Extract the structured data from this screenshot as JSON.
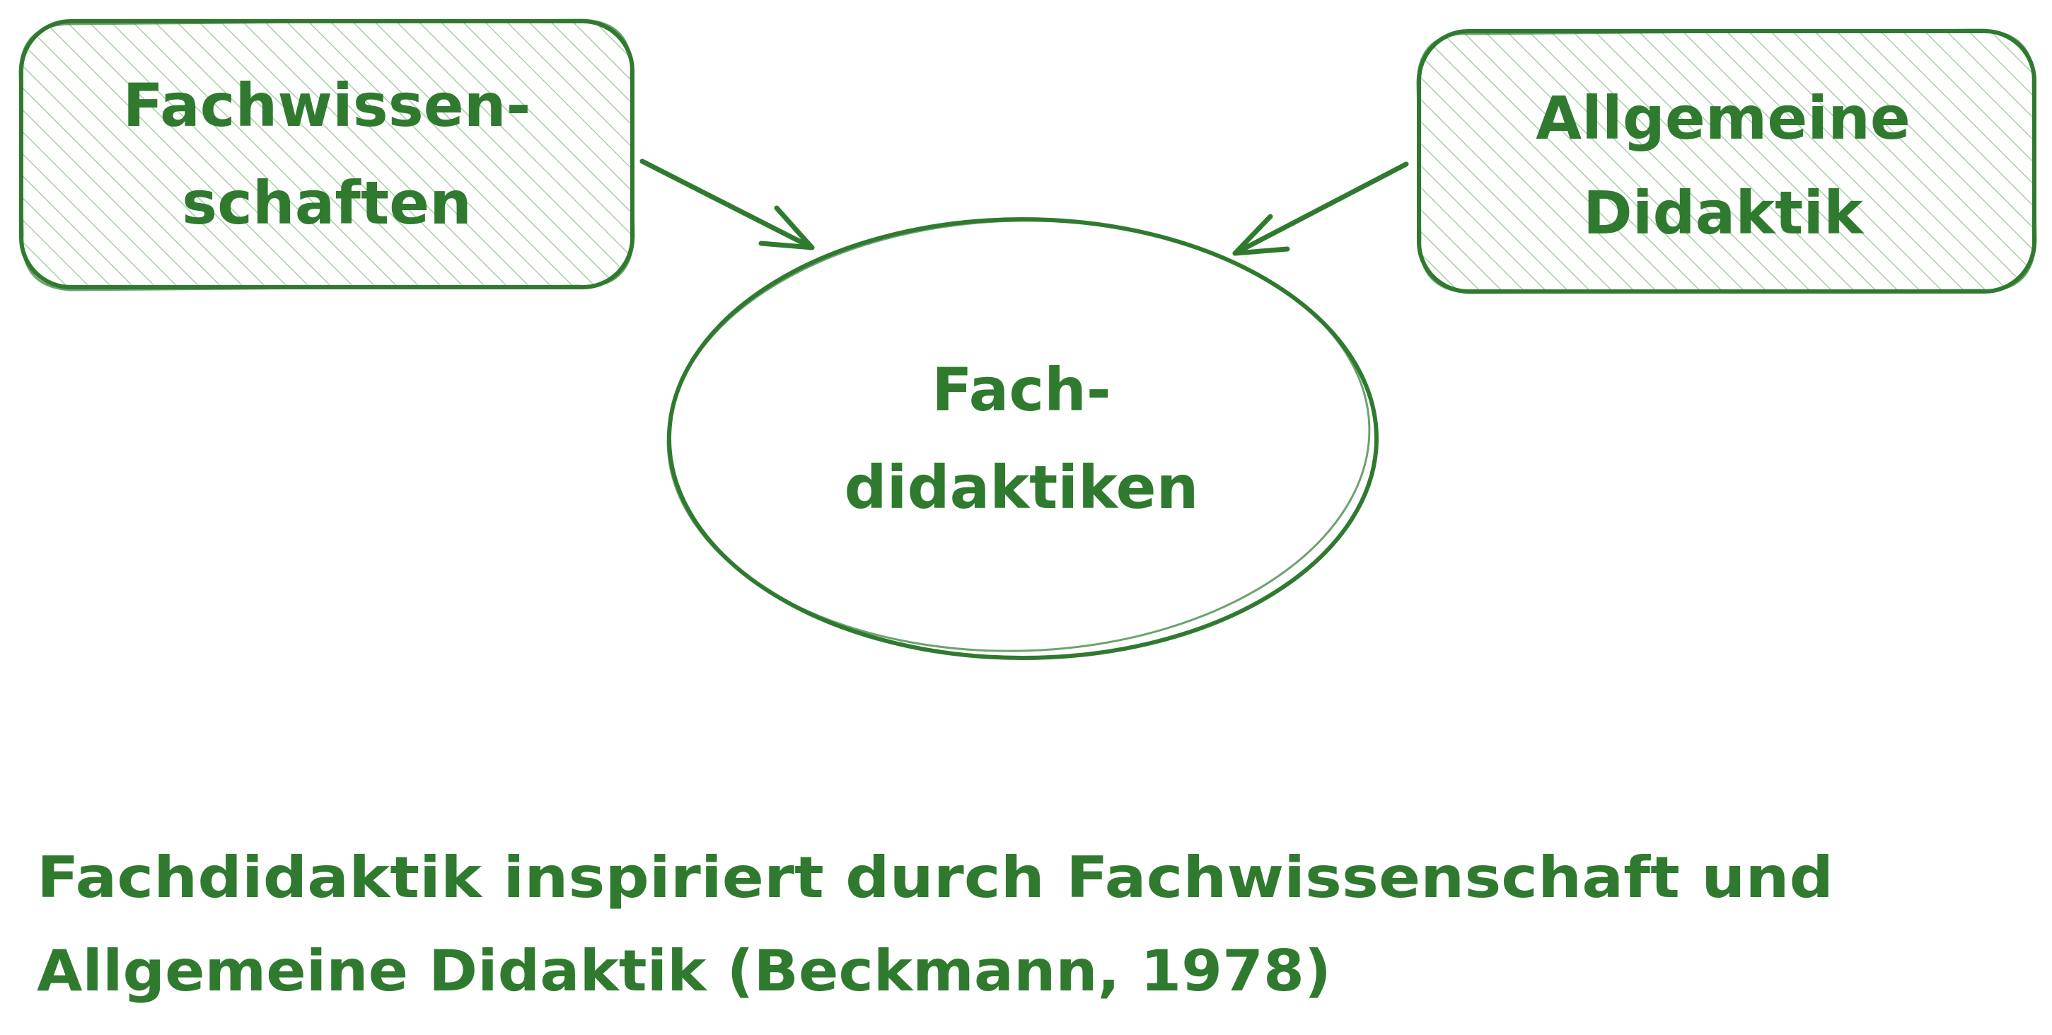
{
  "colors": {
    "stroke": "#2f7a2f",
    "text": "#2f7a2f",
    "hatch": "#a8cfa8",
    "background": "#ffffff"
  },
  "nodes": {
    "fachwissenschaften": {
      "line1": "Fachwissen-",
      "line2": "schaften"
    },
    "allgemeine_didaktik": {
      "line1": "Allgemeine",
      "line2": "Didaktik"
    },
    "fachdidaktiken": {
      "line1": "Fach-",
      "line2": "didaktiken"
    }
  },
  "caption": {
    "line1": "Fachdidaktik inspiriert durch Fachwissenschaft und",
    "line2": "Allgemeine Didaktik (Beckmann, 1978)"
  }
}
